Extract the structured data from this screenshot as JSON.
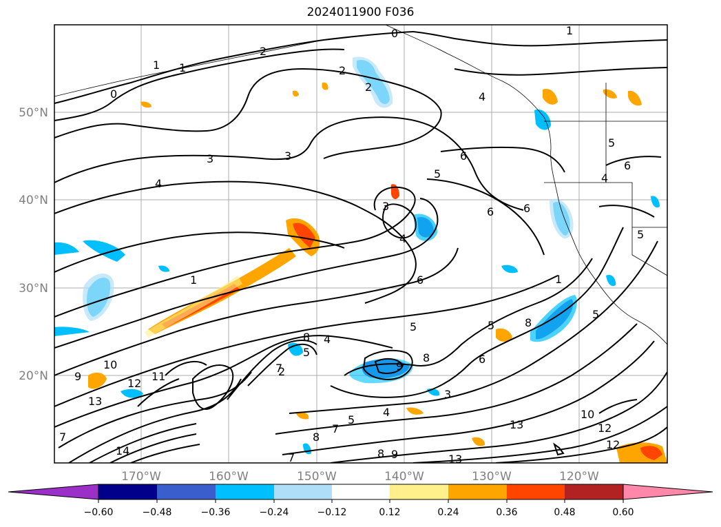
{
  "title": "2024011900 F036",
  "map": {
    "lat_labels": [
      "50°N",
      "40°N",
      "30°N",
      "20°N"
    ],
    "lon_labels": [
      "170°W",
      "160°W",
      "150°W",
      "140°W",
      "130°W",
      "120°W"
    ]
  },
  "colorbar": {
    "ticks": [
      "−0.60",
      "−0.48",
      "−0.36",
      "−0.24",
      "−0.12",
      "0.12",
      "0.24",
      "0.36",
      "0.48",
      "0.60"
    ],
    "colors": [
      "#9b30c9",
      "#00008b",
      "#3a5fcd",
      "#00bfff",
      "#afdff8",
      "#ffffff",
      "#fff08c",
      "#ffa500",
      "#ff4500",
      "#b22222",
      "#ff88aa"
    ],
    "extend": "both"
  },
  "contour_labels": [
    {
      "text": "0"
    },
    {
      "text": "1"
    },
    {
      "text": "1"
    },
    {
      "text": "2"
    },
    {
      "text": "2"
    },
    {
      "text": "2"
    },
    {
      "text": "0"
    },
    {
      "text": "1"
    },
    {
      "text": "3"
    },
    {
      "text": "3"
    },
    {
      "text": "4"
    },
    {
      "text": "6"
    },
    {
      "text": "5"
    },
    {
      "text": "3"
    },
    {
      "text": "6"
    },
    {
      "text": "6"
    },
    {
      "text": "4"
    },
    {
      "text": "1"
    },
    {
      "text": "6"
    },
    {
      "text": "5"
    },
    {
      "text": "5"
    },
    {
      "text": "8"
    },
    {
      "text": "8"
    },
    {
      "text": "4"
    },
    {
      "text": "5"
    },
    {
      "text": "7"
    },
    {
      "text": "9"
    },
    {
      "text": "8"
    },
    {
      "text": "6"
    },
    {
      "text": "9"
    },
    {
      "text": "10"
    },
    {
      "text": "12"
    },
    {
      "text": "13"
    },
    {
      "text": "11"
    },
    {
      "text": "4"
    },
    {
      "text": "5"
    },
    {
      "text": "3"
    },
    {
      "text": "7"
    },
    {
      "text": "8"
    },
    {
      "text": "8"
    },
    {
      "text": "9"
    },
    {
      "text": "13"
    },
    {
      "text": "13"
    },
    {
      "text": "10"
    },
    {
      "text": "12"
    },
    {
      "text": "12"
    },
    {
      "text": "14"
    },
    {
      "text": "7"
    },
    {
      "text": "5"
    },
    {
      "text": "5"
    },
    {
      "text": "6"
    },
    {
      "text": "1"
    },
    {
      "text": "5"
    },
    {
      "text": "2"
    },
    {
      "text": "4"
    },
    {
      "text": "7"
    },
    {
      "text": "4"
    }
  ]
}
